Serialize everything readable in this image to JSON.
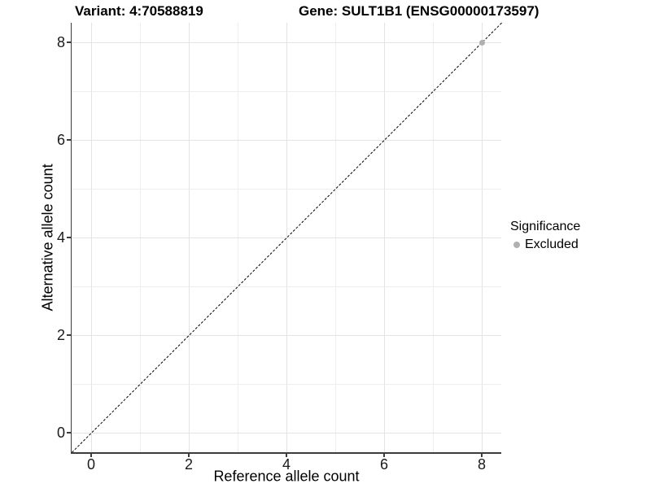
{
  "chart_data": {
    "type": "scatter",
    "titles": {
      "variant": "Variant: 4:70588819",
      "gene": "Gene: SULT1B1 (ENSG00000173597)"
    },
    "xlabel": "Reference allele count",
    "ylabel": "Alternative allele count",
    "xlim": [
      -0.4,
      8.4
    ],
    "ylim": [
      -0.4,
      8.4
    ],
    "xticks": [
      0,
      2,
      4,
      6,
      8
    ],
    "yticks": [
      0,
      2,
      4,
      6,
      8
    ],
    "xminor": [
      1,
      3,
      5,
      7
    ],
    "yminor": [
      1,
      3,
      5,
      7
    ],
    "grid": "on",
    "legend_position": "right",
    "identity_line": {
      "style": "dashed",
      "color": "#000000",
      "from": [
        -0.4,
        -0.4
      ],
      "to": [
        8.4,
        8.4
      ]
    },
    "series": [
      {
        "name": "Excluded",
        "color": "#b0b0b0",
        "points": [
          [
            8,
            8
          ]
        ]
      }
    ],
    "legend": {
      "title": "Significance",
      "entries": [
        {
          "label": "Excluded",
          "color": "#b0b0b0"
        }
      ]
    },
    "colors": {
      "axis": "#3c3c3c",
      "grid_major": "#e3e3e3",
      "grid_minor": "#eeeeee",
      "background": "#ffffff",
      "text": "#000000"
    }
  }
}
